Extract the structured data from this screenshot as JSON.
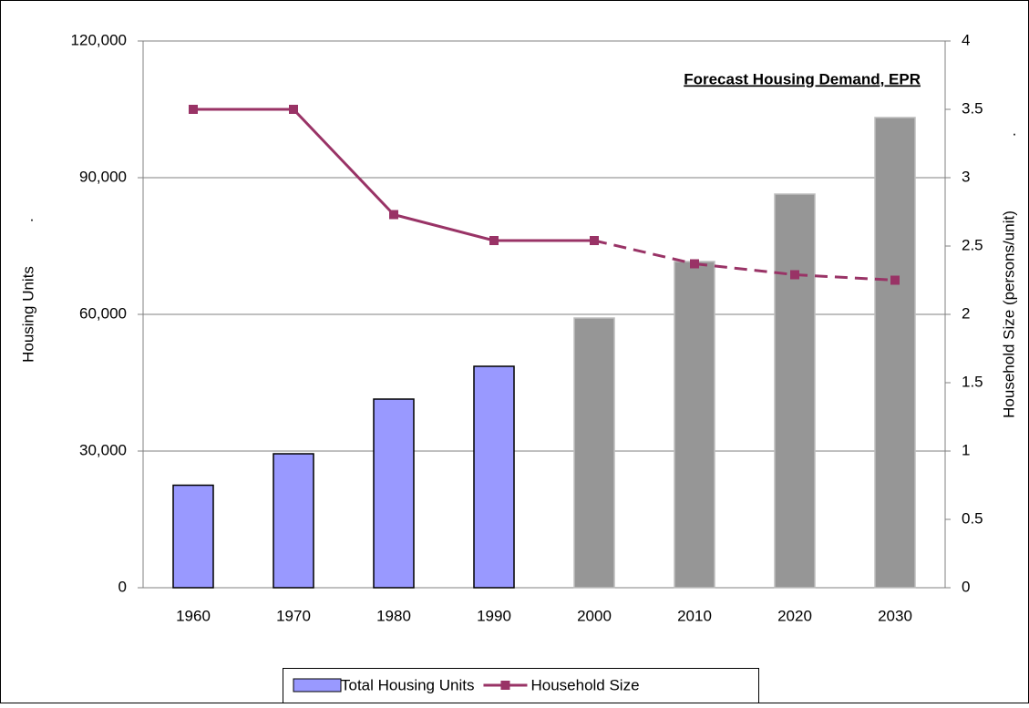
{
  "chart_data": {
    "type": "bar_line",
    "title": "Forecast Housing Demand, EPR",
    "y_label": "Housing Units",
    "y2_label": "Household Size (persons/unit)",
    "annotations": [
      ".",
      "."
    ],
    "categories": [
      "1960",
      "1970",
      "1980",
      "1990",
      "2000",
      "2010",
      "2020",
      "2030"
    ],
    "series": [
      {
        "name": "Total Housing Units",
        "type": "bar",
        "color": "#9999ff",
        "colors": [
          "#9999ff",
          "#9999ff",
          "#9999ff",
          "#9999ff",
          "#969696",
          "#969696",
          "#969696",
          "#969696"
        ],
        "values": [
          22500,
          29400,
          41400,
          48600,
          59200,
          71600,
          86400,
          103200
        ]
      },
      {
        "name": "Household Size",
        "type": "line",
        "axis": "y2",
        "color": "#993366",
        "line_styles": [
          "solid",
          "solid",
          "solid",
          "solid",
          "solid",
          "dashed",
          "dashed",
          "dashed"
        ],
        "values": [
          3.5,
          3.5,
          2.73,
          2.54,
          2.54,
          2.37,
          2.29,
          2.25
        ]
      }
    ],
    "ylim": [
      0,
      120000
    ],
    "yticks": [
      {
        "value": 0,
        "label": "0"
      },
      {
        "value": 30000,
        "label": "30,000"
      },
      {
        "value": 60000,
        "label": "60,000"
      },
      {
        "value": 90000,
        "label": "90,000"
      },
      {
        "value": 120000,
        "label": "120,000"
      }
    ],
    "y2lim": [
      0,
      4
    ],
    "y2ticks": [
      0,
      0.5,
      1,
      1.5,
      2,
      2.5,
      3,
      3.5,
      4
    ],
    "grid": true
  }
}
